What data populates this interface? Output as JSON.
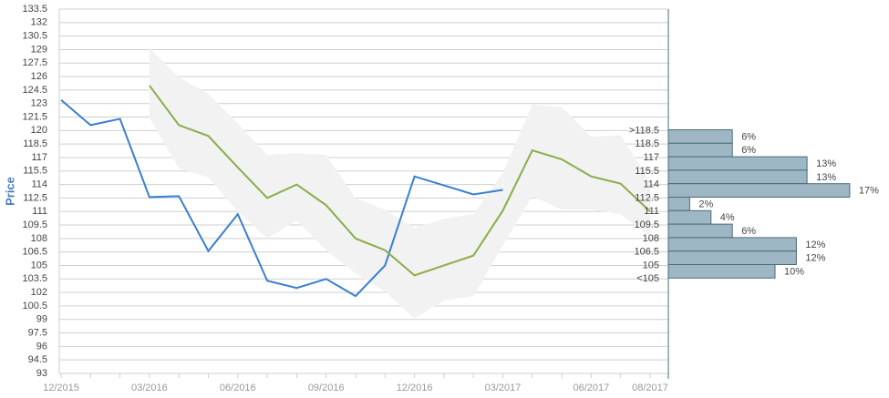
{
  "chart_data": [
    {
      "type": "line",
      "y_label": "Price",
      "categories": [
        "12/2015",
        null,
        null,
        "03/2016",
        null,
        null,
        "06/2016",
        null,
        null,
        "09/2016",
        null,
        null,
        "12/2016",
        null,
        null,
        "03/2017",
        null,
        null,
        "06/2017",
        null,
        "08/2017"
      ],
      "series": [
        {
          "color": "#3a7fd0",
          "values": [
            123.4,
            120.6,
            121.3,
            112.6,
            112.7,
            106.6,
            110.7,
            103.3,
            102.5,
            103.5,
            101.6,
            105.0,
            114.9,
            113.9,
            112.9,
            113.4,
            null,
            null,
            null,
            null,
            null
          ]
        },
        {
          "color": "#8aad4a",
          "values": [
            null,
            null,
            null,
            125.0,
            120.6,
            119.4,
            115.9,
            112.5,
            114.0,
            111.7,
            108.0,
            106.7,
            103.9,
            105.0,
            106.1,
            111.1,
            117.8,
            116.8,
            114.9,
            114.1,
            111.0
          ]
        }
      ],
      "band_color": "#f2f2f2",
      "band_upper": [
        null,
        null,
        null,
        129.2,
        125.9,
        124.1,
        120.8,
        117.3,
        117.5,
        117.3,
        112.5,
        111.2,
        109.2,
        110.2,
        110.7,
        115.3,
        122.9,
        122.6,
        119.3,
        119.5,
        114.3
      ],
      "band_lower": [
        null,
        null,
        null,
        121.4,
        115.8,
        114.8,
        111.0,
        108.0,
        110.0,
        106.7,
        104.1,
        102.1,
        99.1,
        101.1,
        101.6,
        107.2,
        112.7,
        111.2,
        111.2,
        110.7,
        108.2
      ],
      "ylim": [
        93,
        133.5
      ],
      "yticks": [
        93,
        94.5,
        96,
        97.5,
        99,
        100.5,
        102,
        103.5,
        105,
        106.5,
        108,
        109.5,
        111,
        112.5,
        114,
        115.5,
        117,
        118.5,
        120,
        121.5,
        123,
        124.5,
        126,
        127.5,
        129,
        130.5,
        132,
        133.5
      ],
      "grid": true
    },
    {
      "type": "histogram",
      "orientation": "horizontal",
      "color": "#9fb7c4",
      "bins": [
        ">118.5",
        "118.5",
        "117",
        "115.5",
        "114",
        "112.5",
        "111",
        "109.5",
        "108",
        "106.5",
        "105",
        "<105"
      ],
      "values": [
        6,
        6,
        13,
        13,
        17,
        2,
        4,
        6,
        12,
        12,
        10
      ],
      "value_labels": [
        "6%",
        "6%",
        "13%",
        "13%",
        "17%",
        "2%",
        "4%",
        "6%",
        "12%",
        "12%",
        "10%"
      ]
    }
  ]
}
